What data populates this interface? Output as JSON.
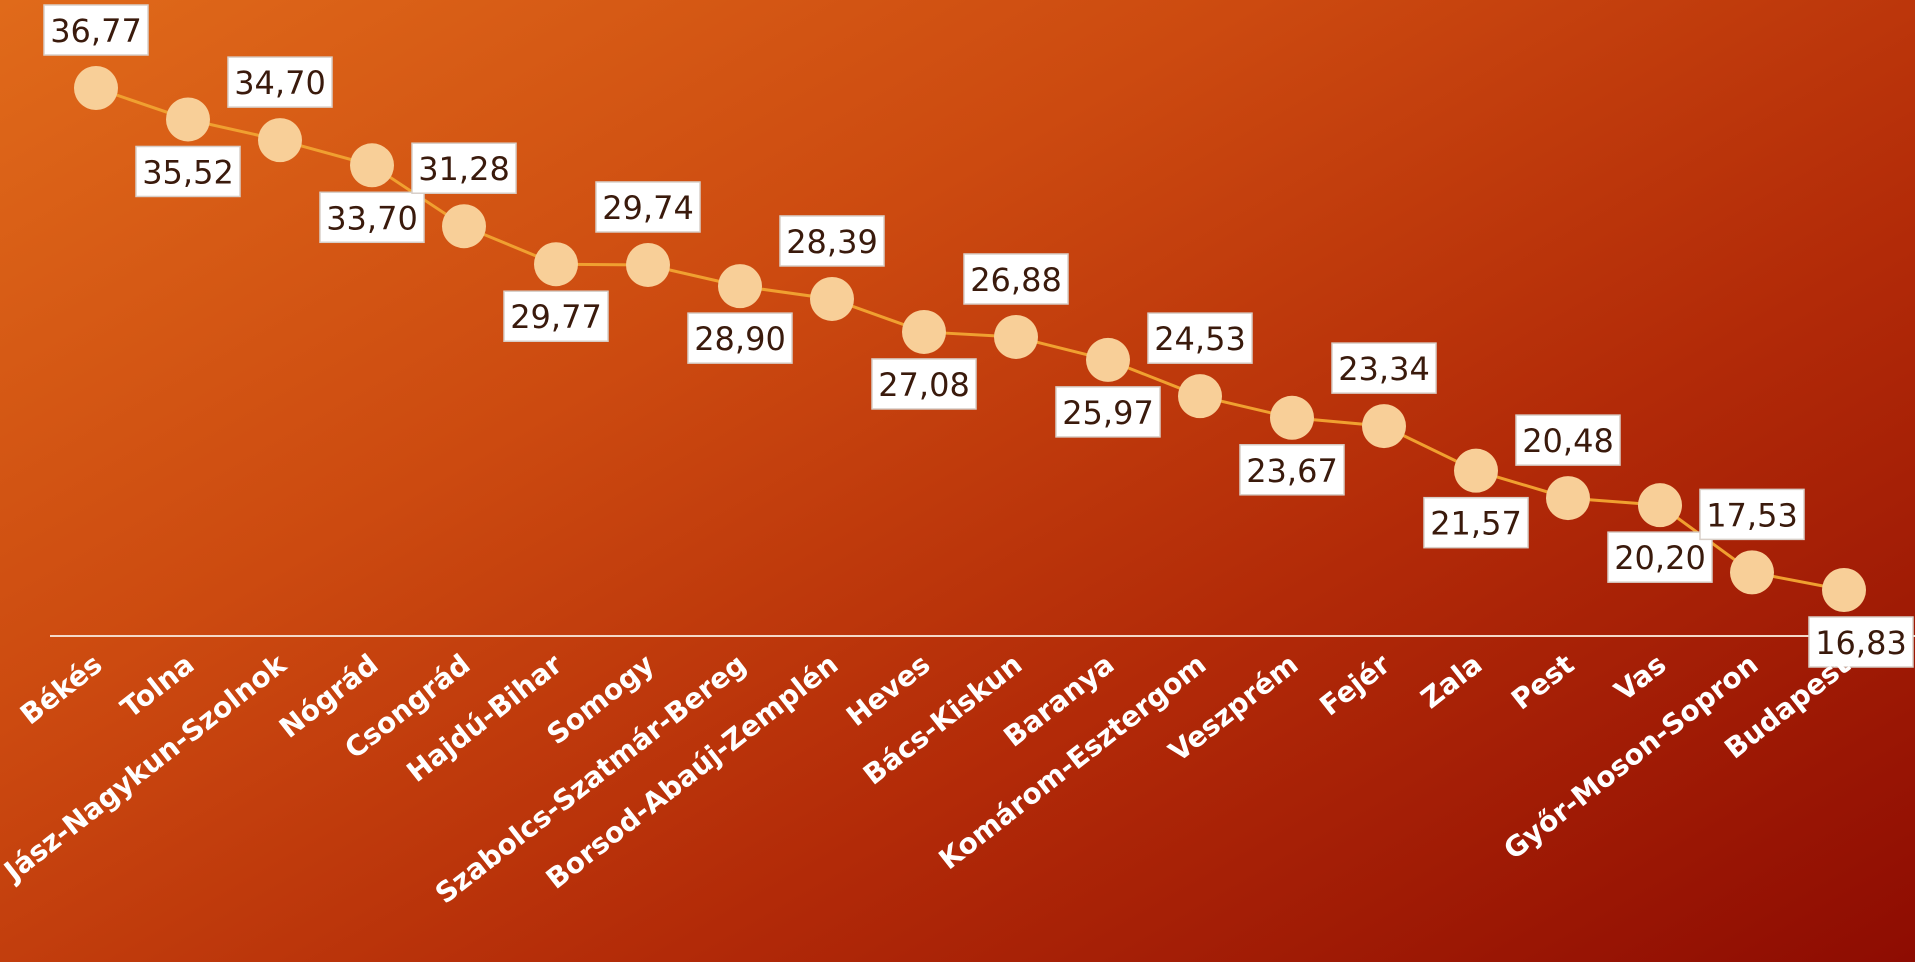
{
  "colors": {
    "line": "#f0a030",
    "marker": "#f8cf98",
    "axis": "#f4d9c8",
    "label_box": "#ffffff",
    "value_text": "#3a1a0c",
    "category_text": "#ffffff"
  },
  "chart_data": {
    "type": "line",
    "title": "",
    "xlabel": "",
    "ylabel": "",
    "categories": [
      "Békés",
      "Tolna",
      "Jász-Nagykun-Szolnok",
      "Nógrád",
      "Csongrád",
      "Hajdú-Bihar",
      "Somogy",
      "Szabolcs-Szatmár-Bereg",
      "Borsod-Abaúj-Zemplén",
      "Heves",
      "Bács-Kiskun",
      "Baranya",
      "Komárom-Esztergom",
      "Veszprém",
      "Fejér",
      "Zala",
      "Pest",
      "Vas",
      "Győr-Moson-Sopron",
      "Budapest"
    ],
    "values": [
      36.77,
      35.52,
      34.7,
      33.7,
      31.28,
      29.77,
      29.74,
      28.9,
      28.39,
      27.08,
      26.88,
      25.97,
      24.53,
      23.67,
      23.34,
      21.57,
      20.48,
      20.2,
      17.53,
      16.83
    ],
    "value_labels": [
      "36,77",
      "35,52",
      "34,70",
      "33,70",
      "31,28",
      "29,77",
      "29,74",
      "28,90",
      "28,39",
      "27,08",
      "26,88",
      "25,97",
      "24,53",
      "23,67",
      "23,34",
      "21,57",
      "20,48",
      "20,20",
      "17,53",
      "16,83"
    ],
    "label_positions": [
      "above",
      "below",
      "above",
      "below",
      "above",
      "below",
      "above",
      "below",
      "above",
      "below",
      "above",
      "below",
      "above",
      "below",
      "above",
      "below",
      "above",
      "below",
      "above",
      "below"
    ],
    "grid": false,
    "legend": "none"
  }
}
